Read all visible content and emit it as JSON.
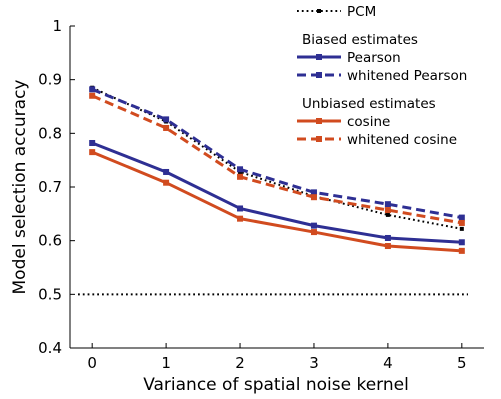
{
  "chart_data": {
    "type": "line",
    "xlabel": "Variance of spatial noise kernel",
    "ylabel": "Model selection accuracy",
    "xlim": [
      -0.3,
      5.3
    ],
    "ylim": [
      0.4,
      1.0
    ],
    "x": [
      0,
      1,
      2,
      3,
      4,
      5
    ],
    "x_ticks": [
      0,
      1,
      2,
      3,
      4,
      5
    ],
    "y_ticks": [
      0.4,
      0.5,
      0.6,
      0.7,
      0.8,
      0.9,
      1.0
    ],
    "y_tick_labels": [
      "0.4",
      "0.5",
      "0.6",
      "0.7",
      "0.8",
      "0.9",
      "1"
    ],
    "grid": false,
    "legend_position": "top-right",
    "legend_groups": [
      {
        "heading": "",
        "series": [
          "PCM"
        ]
      },
      {
        "heading": "Biased estimates",
        "series": [
          "Pearson",
          "whitened Pearson"
        ]
      },
      {
        "heading": "Unbiased estimates",
        "series": [
          "cosine",
          "whitened cosine"
        ]
      }
    ],
    "series": [
      {
        "name": "PCM",
        "values": [
          0.885,
          0.822,
          0.728,
          0.683,
          0.648,
          0.622
        ],
        "color": "#000000",
        "dash": "dotted",
        "marker": "square"
      },
      {
        "name": "Pearson",
        "values": [
          0.782,
          0.728,
          0.66,
          0.628,
          0.605,
          0.597
        ],
        "color": "#2e2f93",
        "dash": "solid",
        "marker": "square"
      },
      {
        "name": "whitened Pearson",
        "values": [
          0.882,
          0.826,
          0.733,
          0.69,
          0.668,
          0.643
        ],
        "color": "#2e2f93",
        "dash": "dashed",
        "marker": "square"
      },
      {
        "name": "cosine",
        "values": [
          0.765,
          0.708,
          0.641,
          0.616,
          0.59,
          0.581
        ],
        "color": "#d14b1f",
        "dash": "solid",
        "marker": "square"
      },
      {
        "name": "whitened cosine",
        "values": [
          0.87,
          0.81,
          0.719,
          0.681,
          0.657,
          0.633
        ],
        "color": "#d14b1f",
        "dash": "dashed",
        "marker": "square"
      }
    ],
    "reference_lines": [
      {
        "y": 0.5,
        "color": "#000000",
        "dash": "dotted"
      }
    ]
  }
}
